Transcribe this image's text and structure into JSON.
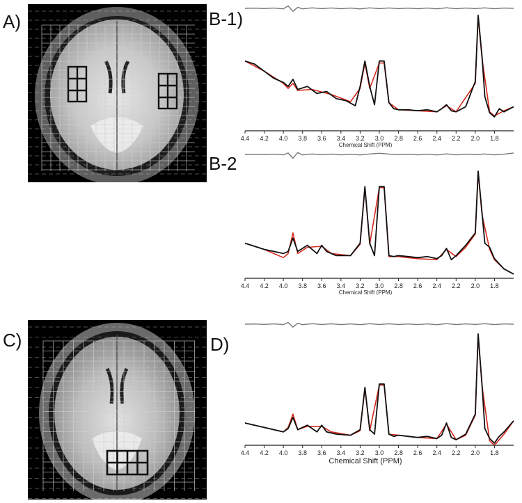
{
  "labels": {
    "a": "A)",
    "b1": "B-1)",
    "b2": "B-2",
    "c": "C)",
    "d": "D)"
  },
  "colors": {
    "spectrum": "#111111",
    "fit": "#d62a1e",
    "residual": "#777777",
    "grid": "#cfcfcf",
    "voxel_box": "#111111"
  },
  "chart_data": [
    {
      "id": "B-1",
      "type": "line",
      "xlabel": "Chemical Shift (PPM)",
      "xlim": [
        4.4,
        1.6
      ],
      "xticks": [
        "4.4",
        "4.2",
        "4.0",
        "3.8",
        "3.6",
        "3.4",
        "3.2",
        "3.0",
        "2.8",
        "2.6",
        "2.4",
        "2.2",
        "2.0",
        "1.8"
      ],
      "series": [
        {
          "role": "spectrum",
          "x": [
            4.4,
            4.3,
            4.2,
            4.1,
            4.0,
            3.95,
            3.9,
            3.85,
            3.75,
            3.65,
            3.55,
            3.45,
            3.35,
            3.25,
            3.2,
            3.15,
            3.1,
            3.05,
            3.0,
            2.95,
            2.9,
            2.85,
            2.8,
            2.7,
            2.6,
            2.5,
            2.4,
            2.35,
            2.3,
            2.25,
            2.2,
            2.1,
            2.0,
            1.97,
            1.93,
            1.9,
            1.85,
            1.8,
            1.75,
            1.7,
            1.6
          ],
          "y": [
            0.55,
            0.52,
            0.45,
            0.38,
            0.34,
            0.3,
            0.37,
            0.27,
            0.3,
            0.23,
            0.25,
            0.18,
            0.16,
            0.11,
            0.3,
            0.55,
            0.3,
            0.12,
            0.55,
            0.55,
            0.14,
            0.08,
            0.07,
            0.07,
            0.06,
            0.07,
            0.05,
            0.08,
            0.12,
            0.06,
            0.05,
            0.1,
            0.35,
            1.0,
            0.6,
            0.2,
            0.04,
            0.0,
            0.08,
            0.05,
            0.1
          ]
        },
        {
          "role": "fit",
          "x": [
            4.4,
            4.2,
            4.0,
            3.95,
            3.9,
            3.85,
            3.7,
            3.5,
            3.3,
            3.2,
            3.15,
            3.1,
            3.0,
            2.95,
            2.9,
            2.8,
            2.6,
            2.4,
            2.3,
            2.2,
            2.0,
            1.97,
            1.93,
            1.85,
            1.8,
            1.7,
            1.6
          ],
          "y": [
            0.55,
            0.45,
            0.33,
            0.28,
            0.33,
            0.26,
            0.27,
            0.22,
            0.15,
            0.28,
            0.53,
            0.28,
            0.53,
            0.53,
            0.14,
            0.07,
            0.06,
            0.05,
            0.11,
            0.05,
            0.33,
            0.98,
            0.58,
            0.05,
            0.01,
            0.06,
            0.1
          ]
        },
        {
          "role": "residual",
          "x": [
            4.4,
            4.3,
            4.2,
            4.1,
            4.0,
            3.95,
            3.9,
            3.85,
            3.8,
            3.7,
            3.6,
            3.5,
            3.4,
            3.3,
            3.2,
            3.1,
            3.0,
            2.9,
            2.8,
            2.7,
            2.6,
            2.5,
            2.4,
            2.3,
            2.2,
            2.1,
            2.0,
            1.9,
            1.8,
            1.7,
            1.6
          ],
          "y": [
            0,
            0.02,
            -0.02,
            0.03,
            -0.05,
            0.25,
            -0.3,
            0.1,
            -0.05,
            0.05,
            -0.03,
            0.04,
            -0.04,
            0.03,
            -0.06,
            0.05,
            -0.03,
            0.04,
            -0.03,
            0.02,
            -0.04,
            0.03,
            -0.05,
            0.06,
            -0.04,
            0.03,
            -0.02,
            0.05,
            -0.04,
            0.03,
            0
          ]
        }
      ]
    },
    {
      "id": "B-2",
      "type": "line",
      "xlabel": "Chemical Shift (PPM)",
      "xlim": [
        4.4,
        1.6
      ],
      "xticks": [
        "4.4",
        "4.2",
        "4.0",
        "3.8",
        "3.6",
        "3.4",
        "3.2",
        "3.0",
        "2.8",
        "2.6",
        "2.4",
        "2.2",
        "2.0",
        "1.8"
      ],
      "series": [
        {
          "role": "spectrum",
          "x": [
            4.4,
            4.3,
            4.2,
            4.1,
            4.0,
            3.95,
            3.9,
            3.85,
            3.75,
            3.65,
            3.6,
            3.55,
            3.45,
            3.3,
            3.2,
            3.15,
            3.1,
            3.05,
            3.0,
            2.95,
            2.9,
            2.85,
            2.8,
            2.7,
            2.6,
            2.5,
            2.4,
            2.35,
            2.3,
            2.25,
            2.2,
            2.1,
            2.0,
            1.97,
            1.93,
            1.9,
            1.85,
            1.8,
            1.75,
            1.7,
            1.6
          ],
          "y": [
            0.3,
            0.27,
            0.24,
            0.22,
            0.2,
            0.22,
            0.35,
            0.22,
            0.28,
            0.2,
            0.28,
            0.22,
            0.18,
            0.18,
            0.3,
            0.85,
            0.3,
            0.18,
            0.85,
            0.85,
            0.18,
            0.17,
            0.18,
            0.17,
            0.16,
            0.17,
            0.15,
            0.18,
            0.25,
            0.14,
            0.18,
            0.28,
            0.4,
            1.0,
            0.6,
            0.3,
            0.26,
            0.15,
            0.1,
            0.05,
            0.0
          ]
        },
        {
          "role": "fit",
          "x": [
            4.4,
            4.2,
            4.0,
            3.95,
            3.9,
            3.85,
            3.75,
            3.6,
            3.5,
            3.3,
            3.2,
            3.15,
            3.1,
            3.0,
            2.95,
            2.9,
            2.8,
            2.6,
            2.4,
            2.3,
            2.2,
            2.1,
            2.0,
            1.97,
            1.93,
            1.85,
            1.8,
            1.7,
            1.6
          ],
          "y": [
            0.3,
            0.24,
            0.16,
            0.2,
            0.4,
            0.2,
            0.26,
            0.27,
            0.2,
            0.18,
            0.29,
            0.84,
            0.29,
            0.84,
            0.84,
            0.17,
            0.17,
            0.15,
            0.14,
            0.24,
            0.17,
            0.26,
            0.39,
            0.98,
            0.58,
            0.24,
            0.14,
            0.05,
            0.0
          ]
        },
        {
          "role": "residual",
          "x": [
            4.4,
            4.3,
            4.2,
            4.1,
            4.0,
            3.95,
            3.9,
            3.85,
            3.8,
            3.7,
            3.6,
            3.5,
            3.4,
            3.3,
            3.2,
            3.1,
            3.0,
            2.9,
            2.8,
            2.7,
            2.6,
            2.5,
            2.4,
            2.3,
            2.2,
            2.1,
            2.0,
            1.9,
            1.8,
            1.7,
            1.6
          ],
          "y": [
            0,
            0.02,
            -0.02,
            0.03,
            -0.04,
            0.15,
            -0.4,
            0.2,
            -0.05,
            0.05,
            -0.03,
            0.04,
            -0.04,
            0.03,
            -0.05,
            0.05,
            0.12,
            0.04,
            -0.03,
            0.02,
            -0.04,
            0.03,
            -0.05,
            0.06,
            -0.04,
            0.03,
            -0.02,
            0.05,
            -0.04,
            0.03,
            0.15
          ]
        }
      ]
    },
    {
      "id": "D",
      "type": "line",
      "xlabel": "Chemical Shift (PPM)",
      "xlim": [
        4.4,
        1.6
      ],
      "xticks": [
        "4.4",
        "4.2",
        "4.0",
        "3.8",
        "3.6",
        "3.4",
        "3.2",
        "3.0",
        "2.8",
        "2.6",
        "2.4",
        "2.2",
        "2.0",
        "1.8"
      ],
      "series": [
        {
          "role": "spectrum",
          "x": [
            4.4,
            4.3,
            4.2,
            4.1,
            4.0,
            3.95,
            3.9,
            3.85,
            3.75,
            3.65,
            3.6,
            3.55,
            3.45,
            3.3,
            3.2,
            3.15,
            3.1,
            3.05,
            3.0,
            2.95,
            2.9,
            2.85,
            2.8,
            2.7,
            2.6,
            2.5,
            2.4,
            2.35,
            2.3,
            2.25,
            2.2,
            2.1,
            2.0,
            1.97,
            1.93,
            1.9,
            1.85,
            1.8,
            1.75,
            1.7,
            1.6
          ],
          "y": [
            0.2,
            0.18,
            0.16,
            0.14,
            0.12,
            0.15,
            0.25,
            0.14,
            0.18,
            0.12,
            0.18,
            0.12,
            0.1,
            0.09,
            0.14,
            0.52,
            0.14,
            0.1,
            0.55,
            0.55,
            0.1,
            0.08,
            0.09,
            0.08,
            0.07,
            0.08,
            0.06,
            0.09,
            0.2,
            0.07,
            0.05,
            0.1,
            0.28,
            1.0,
            0.55,
            0.15,
            0.06,
            0.02,
            0.08,
            0.12,
            0.22
          ]
        },
        {
          "role": "fit",
          "x": [
            4.4,
            4.2,
            4.0,
            3.95,
            3.9,
            3.85,
            3.75,
            3.6,
            3.5,
            3.3,
            3.2,
            3.15,
            3.1,
            3.0,
            2.95,
            2.9,
            2.8,
            2.6,
            2.4,
            2.3,
            2.2,
            2.1,
            2.0,
            1.97,
            1.93,
            1.85,
            1.8,
            1.7,
            1.6
          ],
          "y": [
            0.2,
            0.16,
            0.12,
            0.16,
            0.28,
            0.14,
            0.17,
            0.17,
            0.12,
            0.09,
            0.13,
            0.51,
            0.13,
            0.54,
            0.54,
            0.1,
            0.09,
            0.07,
            0.06,
            0.19,
            0.05,
            0.09,
            0.27,
            0.98,
            0.54,
            0.04,
            0.0,
            0.1,
            0.22
          ]
        },
        {
          "role": "residual",
          "x": [
            4.4,
            4.3,
            4.2,
            4.1,
            4.0,
            3.95,
            3.9,
            3.85,
            3.8,
            3.7,
            3.6,
            3.5,
            3.4,
            3.3,
            3.2,
            3.1,
            3.0,
            2.9,
            2.8,
            2.7,
            2.6,
            2.5,
            2.4,
            2.3,
            2.2,
            2.1,
            2.0,
            1.9,
            1.8,
            1.7,
            1.6
          ],
          "y": [
            0,
            0.02,
            -0.02,
            0.03,
            -0.04,
            0.18,
            -0.3,
            0.1,
            -0.05,
            0.05,
            -0.03,
            0.04,
            -0.04,
            0.03,
            -0.05,
            0.05,
            -0.03,
            0.04,
            -0.03,
            0.02,
            -0.04,
            0.03,
            -0.05,
            0.06,
            -0.04,
            0.03,
            -0.02,
            0.05,
            -0.04,
            0.03,
            0
          ]
        }
      ]
    }
  ]
}
